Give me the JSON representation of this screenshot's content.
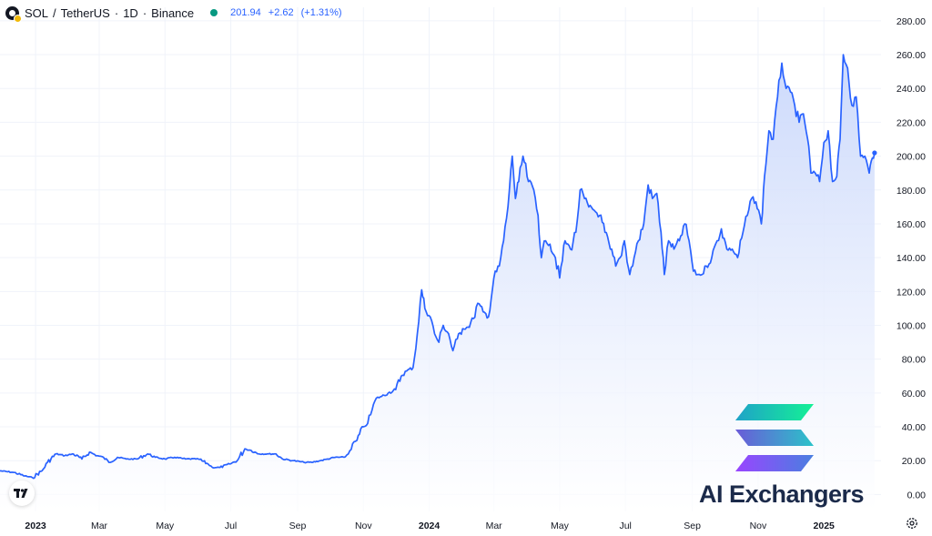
{
  "legend": {
    "symbol": "SOL",
    "quote": "TetherUS",
    "interval": "1D",
    "exchange": "Binance",
    "last_price": "201.94",
    "change": "+2.62",
    "change_pct": "(+1.31%)"
  },
  "watermark": {
    "brand": "AI Exchangers"
  },
  "colors": {
    "line": "#2962ff",
    "fill_top": "#c9d7fb",
    "fill_bottom": "#ffffff",
    "grid": "#f0f3fa",
    "up": "#089981",
    "text": "#131722"
  },
  "icons": [
    "tradingview-logo-icon",
    "solana-logo-icon",
    "settings-icon",
    "status-dot-icon"
  ],
  "chart_data": {
    "type": "area",
    "title": "SOL / TetherUS · 1D · Binance",
    "xlabel": "",
    "ylabel": "",
    "xlim": [
      "2022-11-29",
      "2025-02-23"
    ],
    "ylim": [
      -10,
      288
    ],
    "grid": true,
    "legend": "top-left",
    "y_ticks": [
      "280.00",
      "260.00",
      "240.00",
      "220.00",
      "200.00",
      "180.00",
      "160.00",
      "140.00",
      "120.00",
      "100.00",
      "80.00",
      "60.00",
      "40.00",
      "20.00",
      "0.00"
    ],
    "x_ticks": [
      {
        "label": "2023",
        "date": "2023-01-01",
        "bold": true
      },
      {
        "label": "Mar",
        "date": "2023-03-01",
        "bold": false
      },
      {
        "label": "May",
        "date": "2023-05-01",
        "bold": false
      },
      {
        "label": "Jul",
        "date": "2023-07-01",
        "bold": false
      },
      {
        "label": "Sep",
        "date": "2023-09-01",
        "bold": false
      },
      {
        "label": "Nov",
        "date": "2023-11-01",
        "bold": false
      },
      {
        "label": "2024",
        "date": "2024-01-01",
        "bold": true
      },
      {
        "label": "Mar",
        "date": "2024-03-01",
        "bold": false
      },
      {
        "label": "May",
        "date": "2024-05-01",
        "bold": false
      },
      {
        "label": "Jul",
        "date": "2024-07-01",
        "bold": false
      },
      {
        "label": "Sep",
        "date": "2024-09-01",
        "bold": false
      },
      {
        "label": "Nov",
        "date": "2024-11-01",
        "bold": false
      },
      {
        "label": "2025",
        "date": "2025-01-01",
        "bold": true
      }
    ],
    "series": [
      {
        "values": [
          [
            "2022-11-29",
            14
          ],
          [
            "2022-12-12",
            13
          ],
          [
            "2022-12-22",
            11
          ],
          [
            "2022-12-29",
            10
          ],
          [
            "2023-01-07",
            14
          ],
          [
            "2023-01-12",
            19
          ],
          [
            "2023-01-20",
            24
          ],
          [
            "2023-01-28",
            23
          ],
          [
            "2023-02-05",
            24
          ],
          [
            "2023-02-13",
            21
          ],
          [
            "2023-02-20",
            25
          ],
          [
            "2023-02-27",
            23
          ],
          [
            "2023-03-05",
            22
          ],
          [
            "2023-03-10",
            19
          ],
          [
            "2023-03-18",
            22
          ],
          [
            "2023-03-26",
            21
          ],
          [
            "2023-04-05",
            21
          ],
          [
            "2023-04-15",
            24
          ],
          [
            "2023-04-22",
            22
          ],
          [
            "2023-05-01",
            21
          ],
          [
            "2023-05-10",
            22
          ],
          [
            "2023-05-20",
            21
          ],
          [
            "2023-06-01",
            21
          ],
          [
            "2023-06-10",
            18
          ],
          [
            "2023-06-14",
            16
          ],
          [
            "2023-06-21",
            16
          ],
          [
            "2023-06-30",
            18
          ],
          [
            "2023-07-07",
            20
          ],
          [
            "2023-07-14",
            27
          ],
          [
            "2023-07-20",
            26
          ],
          [
            "2023-07-27",
            24
          ],
          [
            "2023-08-05",
            24
          ],
          [
            "2023-08-12",
            24
          ],
          [
            "2023-08-18",
            21
          ],
          [
            "2023-08-28",
            20
          ],
          [
            "2023-09-07",
            19
          ],
          [
            "2023-09-14",
            19
          ],
          [
            "2023-09-22",
            20
          ],
          [
            "2023-09-29",
            21
          ],
          [
            "2023-10-06",
            22
          ],
          [
            "2023-10-14",
            22
          ],
          [
            "2023-10-18",
            24
          ],
          [
            "2023-10-22",
            30
          ],
          [
            "2023-10-26",
            32
          ],
          [
            "2023-11-01",
            40
          ],
          [
            "2023-11-05",
            42
          ],
          [
            "2023-11-09",
            50
          ],
          [
            "2023-11-13",
            57
          ],
          [
            "2023-11-18",
            58
          ],
          [
            "2023-11-24",
            60
          ],
          [
            "2023-12-01",
            62
          ],
          [
            "2023-12-06",
            70
          ],
          [
            "2023-12-11",
            73
          ],
          [
            "2023-12-17",
            75
          ],
          [
            "2023-12-21",
            95
          ],
          [
            "2023-12-25",
            121
          ],
          [
            "2023-12-28",
            110
          ],
          [
            "2024-01-02",
            105
          ],
          [
            "2024-01-06",
            95
          ],
          [
            "2024-01-10",
            90
          ],
          [
            "2024-01-14",
            100
          ],
          [
            "2024-01-19",
            95
          ],
          [
            "2024-01-23",
            85
          ],
          [
            "2024-01-27",
            92
          ],
          [
            "2024-02-01",
            98
          ],
          [
            "2024-02-06",
            99
          ],
          [
            "2024-02-11",
            104
          ],
          [
            "2024-02-15",
            113
          ],
          [
            "2024-02-20",
            108
          ],
          [
            "2024-02-25",
            105
          ],
          [
            "2024-03-01",
            128
          ],
          [
            "2024-03-06",
            135
          ],
          [
            "2024-03-10",
            150
          ],
          [
            "2024-03-14",
            170
          ],
          [
            "2024-03-18",
            200
          ],
          [
            "2024-03-21",
            175
          ],
          [
            "2024-03-24",
            185
          ],
          [
            "2024-03-28",
            200
          ],
          [
            "2024-04-02",
            185
          ],
          [
            "2024-04-07",
            180
          ],
          [
            "2024-04-11",
            165
          ],
          [
            "2024-04-14",
            140
          ],
          [
            "2024-04-18",
            150
          ],
          [
            "2024-04-22",
            148
          ],
          [
            "2024-04-27",
            140
          ],
          [
            "2024-05-01",
            128
          ],
          [
            "2024-05-06",
            150
          ],
          [
            "2024-05-11",
            145
          ],
          [
            "2024-05-16",
            155
          ],
          [
            "2024-05-20",
            180
          ],
          [
            "2024-05-24",
            175
          ],
          [
            "2024-05-28",
            170
          ],
          [
            "2024-06-02",
            168
          ],
          [
            "2024-06-07",
            165
          ],
          [
            "2024-06-12",
            155
          ],
          [
            "2024-06-17",
            145
          ],
          [
            "2024-06-22",
            135
          ],
          [
            "2024-06-26",
            140
          ],
          [
            "2024-06-30",
            150
          ],
          [
            "2024-07-05",
            130
          ],
          [
            "2024-07-09",
            140
          ],
          [
            "2024-07-13",
            150
          ],
          [
            "2024-07-18",
            160
          ],
          [
            "2024-07-22",
            183
          ],
          [
            "2024-07-26",
            175
          ],
          [
            "2024-07-30",
            178
          ],
          [
            "2024-08-03",
            155
          ],
          [
            "2024-08-06",
            130
          ],
          [
            "2024-08-10",
            150
          ],
          [
            "2024-08-15",
            145
          ],
          [
            "2024-08-20",
            150
          ],
          [
            "2024-08-25",
            160
          ],
          [
            "2024-08-29",
            150
          ],
          [
            "2024-09-02",
            132
          ],
          [
            "2024-09-06",
            130
          ],
          [
            "2024-09-10",
            130
          ],
          [
            "2024-09-14",
            135
          ],
          [
            "2024-09-19",
            140
          ],
          [
            "2024-09-24",
            150
          ],
          [
            "2024-09-28",
            157
          ],
          [
            "2024-10-03",
            145
          ],
          [
            "2024-10-08",
            145
          ],
          [
            "2024-10-13",
            140
          ],
          [
            "2024-10-18",
            155
          ],
          [
            "2024-10-22",
            165
          ],
          [
            "2024-10-26",
            175
          ],
          [
            "2024-10-30",
            173
          ],
          [
            "2024-11-04",
            160
          ],
          [
            "2024-11-07",
            188
          ],
          [
            "2024-11-11",
            215
          ],
          [
            "2024-11-15",
            210
          ],
          [
            "2024-11-19",
            235
          ],
          [
            "2024-11-23",
            255
          ],
          [
            "2024-11-27",
            240
          ],
          [
            "2024-12-01",
            238
          ],
          [
            "2024-12-05",
            230
          ],
          [
            "2024-12-09",
            220
          ],
          [
            "2024-12-13",
            225
          ],
          [
            "2024-12-17",
            210
          ],
          [
            "2024-12-20",
            190
          ],
          [
            "2024-12-24",
            190
          ],
          [
            "2024-12-28",
            185
          ],
          [
            "2025-01-01",
            208
          ],
          [
            "2025-01-05",
            215
          ],
          [
            "2025-01-09",
            185
          ],
          [
            "2025-01-13",
            188
          ],
          [
            "2025-01-16",
            210
          ],
          [
            "2025-01-19",
            260
          ],
          [
            "2025-01-23",
            252
          ],
          [
            "2025-01-27",
            230
          ],
          [
            "2025-01-31",
            235
          ],
          [
            "2025-02-04",
            200
          ],
          [
            "2025-02-08",
            200
          ],
          [
            "2025-02-12",
            190
          ],
          [
            "2025-02-15",
            199
          ],
          [
            "2025-02-17",
            201.94
          ]
        ]
      }
    ]
  }
}
